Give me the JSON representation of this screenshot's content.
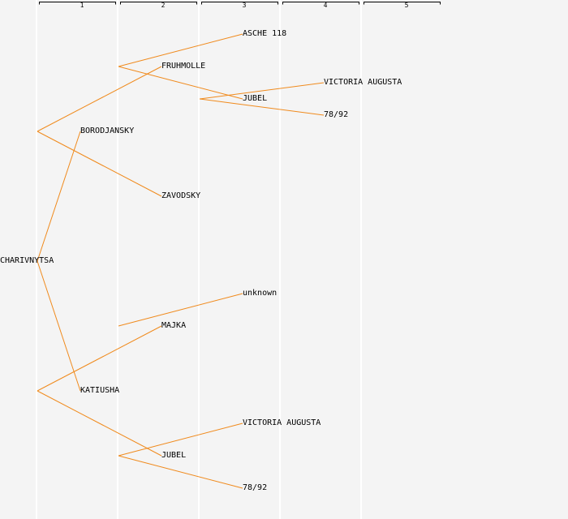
{
  "generations": [
    "1",
    "2",
    "3",
    "4",
    "5"
  ],
  "colors": {
    "background": "#f4f4f4",
    "edge": "#f08a1c",
    "column_divider": "#ffffff"
  },
  "nodes": {
    "charivnytsa": "CHARIVNYTSA",
    "borodjansky": "BORODJANSKY",
    "katiusha": "KATIUSHA",
    "fruhmolle": "FRUHMOLLE",
    "zavodsky": "ZAVODSKY",
    "majka": "MAJKA",
    "jubel_gen2": "JUBEL",
    "asche_118": "ASCHE 118",
    "jubel_gen3": "JUBEL",
    "unknown": "unknown",
    "victoria_augusta_gen3": "VICTORIA AUGUSTA",
    "n78_92_gen3": "78/92",
    "victoria_augusta_gen4": "VICTORIA AUGUSTA",
    "n78_92_gen4": "78/92"
  },
  "edges": [
    [
      "charivnytsa",
      "borodjansky"
    ],
    [
      "charivnytsa",
      "katiusha"
    ],
    [
      "borodjansky",
      "fruhmolle"
    ],
    [
      "borodjansky",
      "zavodsky"
    ],
    [
      "katiusha",
      "majka"
    ],
    [
      "katiusha",
      "jubel_gen2"
    ],
    [
      "fruhmolle",
      "asche_118"
    ],
    [
      "fruhmolle",
      "jubel_gen3"
    ],
    [
      "majka",
      "unknown"
    ],
    [
      "jubel_gen2",
      "victoria_augusta_gen3"
    ],
    [
      "jubel_gen2",
      "n78_92_gen3"
    ],
    [
      "jubel_gen3",
      "victoria_augusta_gen4"
    ],
    [
      "jubel_gen3",
      "n78_92_gen4"
    ]
  ]
}
